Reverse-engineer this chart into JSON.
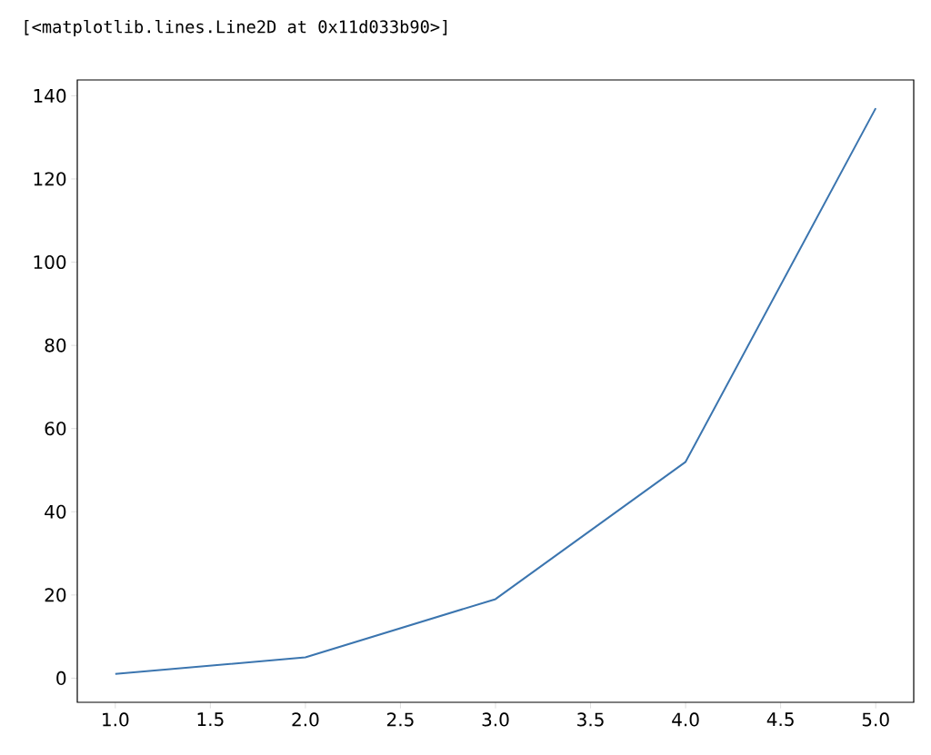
{
  "chart_data": {
    "type": "line",
    "annotations": [
      "[<matplotlib.lines.Line2D at 0x11d033b90>]"
    ],
    "x": [
      1,
      2,
      3,
      4,
      5
    ],
    "series": [
      {
        "color": "#3b75af",
        "values": [
          1,
          5,
          19,
          52,
          137
        ]
      }
    ],
    "xlim": [
      0.8,
      5.2
    ],
    "ylim": [
      -5.8,
      143.8
    ],
    "xticks": [
      {
        "value": 1,
        "label": "1.0"
      },
      {
        "value": 1.5,
        "label": "1.5"
      },
      {
        "value": 2,
        "label": "2.0"
      },
      {
        "value": 2.5,
        "label": "2.5"
      },
      {
        "value": 3,
        "label": "3.0"
      },
      {
        "value": 3.5,
        "label": "3.5"
      },
      {
        "value": 4,
        "label": "4.0"
      },
      {
        "value": 4.5,
        "label": "4.5"
      },
      {
        "value": 5,
        "label": "5.0"
      }
    ],
    "yticks": [
      0,
      20,
      40,
      60,
      80,
      100,
      120,
      140
    ]
  }
}
